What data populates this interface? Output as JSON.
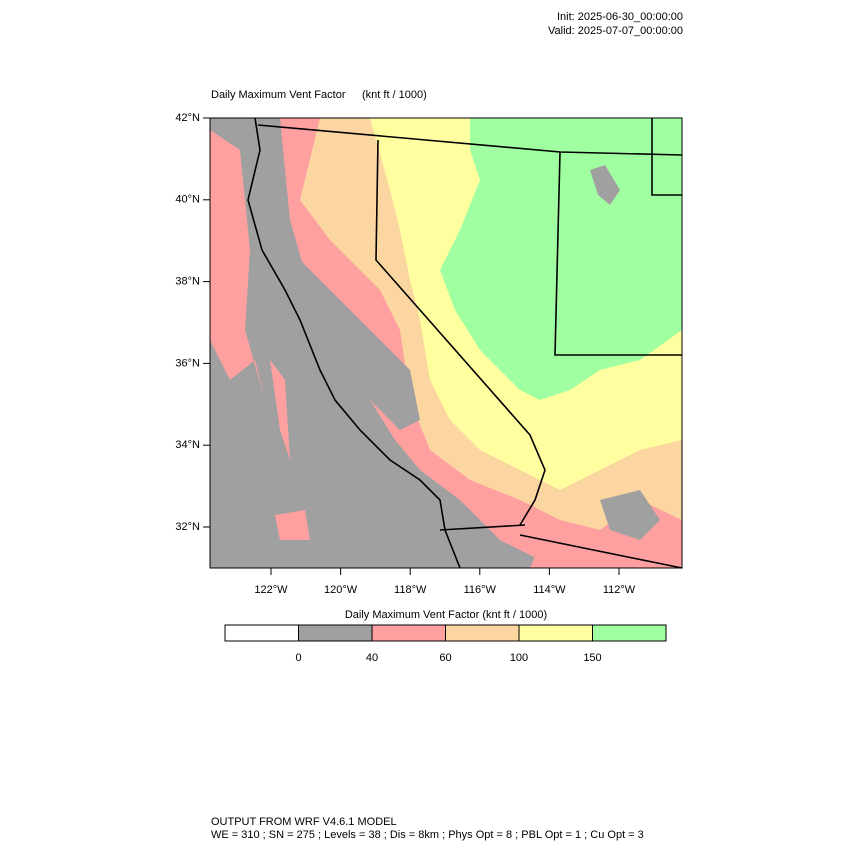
{
  "header": {
    "init": "Init: 2025-06-30_00:00:00",
    "valid": "Valid: 2025-07-07_00:00:00"
  },
  "map": {
    "title": "Daily Maximum Vent Factor",
    "units": "(knt ft / 1000)",
    "lat_labels": [
      "42°N",
      "40°N",
      "38°N",
      "36°N",
      "34°N",
      "32°N"
    ],
    "lon_labels": [
      "122°W",
      "120°W",
      "118°W",
      "116°W",
      "114°W",
      "112°W"
    ]
  },
  "colorbar": {
    "title": "Daily Maximum Vent Factor  (knt ft / 1000)",
    "levels": [
      0,
      40,
      60,
      100,
      150
    ],
    "colors": [
      "#ffffff",
      "#a0a0a0",
      "#ffa0a0",
      "#fcd6a0",
      "#ffffa0",
      "#a0ffa0"
    ]
  },
  "footer": {
    "line1": "OUTPUT FROM WRF V4.6.1 MODEL",
    "line2": "WE = 310 ; SN = 275 ; Levels = 38 ; Dis = 8km ; Phys Opt = 8 ; PBL Opt = 1 ; Cu Opt = 3"
  }
}
